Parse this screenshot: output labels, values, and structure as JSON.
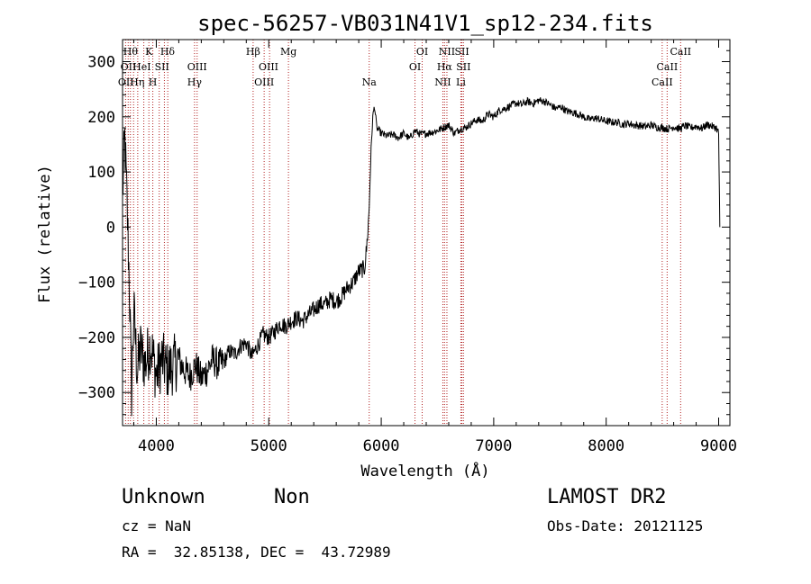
{
  "chart_data": {
    "type": "line",
    "title": "spec-56257-VB031N41V1_sp12-234.fits",
    "xlabel": "Wavelength (Å)",
    "ylabel": "Flux (relative)",
    "xlim": [
      3700,
      9100
    ],
    "ylim": [
      -360,
      340
    ],
    "xticks": [
      4000,
      5000,
      6000,
      7000,
      8000,
      9000
    ],
    "yticks": [
      -300,
      -200,
      -100,
      0,
      100,
      200,
      300
    ],
    "tick_labels": {
      "x": [
        "4000",
        "5000",
        "6000",
        "7000",
        "8000",
        "9000"
      ],
      "y": [
        "−300",
        "−200",
        "−100",
        "0",
        "100",
        "200",
        "300"
      ]
    },
    "grid": false,
    "series": [
      {
        "x": [
          3700,
          3720,
          3740,
          3760,
          3780,
          3800,
          3830,
          3860,
          3900,
          3950,
          4000,
          4050,
          4100,
          4150,
          4200,
          4250,
          4300,
          4350,
          4400,
          4450,
          4500,
          4550,
          4600,
          4650,
          4700,
          4750,
          4800,
          4850,
          4900,
          4950,
          5000,
          5050,
          5100,
          5150,
          5200,
          5250,
          5300,
          5350,
          5400,
          5450,
          5500,
          5550,
          5600,
          5650,
          5700,
          5750,
          5800,
          5850,
          5870,
          5890,
          5900,
          5910,
          5925,
          5940,
          5960,
          6000,
          6050,
          6100,
          6150,
          6200,
          6250,
          6300,
          6350,
          6400,
          6450,
          6500,
          6550,
          6600,
          6650,
          6700,
          6750,
          6800,
          6850,
          6900,
          6950,
          7000,
          7050,
          7100,
          7150,
          7200,
          7250,
          7300,
          7350,
          7400,
          7450,
          7500,
          7550,
          7600,
          7650,
          7700,
          7750,
          7800,
          7850,
          7900,
          7950,
          8000,
          8050,
          8100,
          8150,
          8200,
          8250,
          8300,
          8350,
          8400,
          8450,
          8500,
          8550,
          8600,
          8650,
          8700,
          8750,
          8800,
          8850,
          8900,
          8950,
          8980,
          9000,
          9010
        ],
        "values": [
          60,
          160,
          40,
          -100,
          -300,
          -150,
          -260,
          -220,
          -250,
          -210,
          -270,
          -240,
          -260,
          -250,
          -240,
          -260,
          -270,
          -250,
          -275,
          -260,
          -240,
          -250,
          -245,
          -225,
          -230,
          -215,
          -210,
          -235,
          -215,
          -195,
          -200,
          -190,
          -175,
          -180,
          -170,
          -165,
          -170,
          -160,
          -150,
          -140,
          -140,
          -130,
          -135,
          -125,
          -110,
          -100,
          -80,
          -75,
          -40,
          20,
          80,
          140,
          200,
          220,
          180,
          170,
          165,
          168,
          162,
          170,
          160,
          175,
          168,
          170,
          172,
          175,
          180,
          185,
          170,
          178,
          180,
          188,
          195,
          192,
          205,
          200,
          212,
          215,
          220,
          225,
          222,
          228,
          224,
          230,
          228,
          222,
          215,
          218,
          210,
          208,
          205,
          200,
          195,
          198,
          195,
          192,
          190,
          190,
          186,
          188,
          185,
          184,
          182,
          185,
          181,
          180,
          178,
          182,
          178,
          184,
          180,
          183,
          179,
          186,
          182,
          180,
          170,
          0
        ]
      }
    ],
    "annotations": {
      "line_color": "#b22222",
      "lines": [
        3727,
        3750,
        3770,
        3798,
        3835,
        3889,
        3934,
        3969,
        4026,
        4072,
        4102,
        4340,
        4363,
        4861,
        4959,
        5007,
        5175,
        5893,
        6300,
        6364,
        6548,
        6563,
        6584,
        6708,
        6717,
        6731,
        8498,
        8542,
        8662
      ],
      "labels": [
        {
          "text": "Hθ",
          "x": 3771,
          "row": 1
        },
        {
          "text": "OII",
          "x": 3752,
          "row": 2
        },
        {
          "text": "OII",
          "x": 3730,
          "row": 3
        },
        {
          "text": "Hη",
          "x": 3830,
          "row": 3
        },
        {
          "text": "K",
          "x": 3934,
          "row": 1
        },
        {
          "text": "HeI",
          "x": 3871,
          "row": 2
        },
        {
          "text": "H",
          "x": 3969,
          "row": 3
        },
        {
          "text": "Hδ",
          "x": 4100,
          "row": 1
        },
        {
          "text": "SII",
          "x": 4050,
          "row": 2
        },
        {
          "text": "OIII",
          "x": 4363,
          "row": 2
        },
        {
          "text": "Hγ",
          "x": 4340,
          "row": 3
        },
        {
          "text": "Hβ",
          "x": 4861,
          "row": 1
        },
        {
          "text": "OIII",
          "x": 4998,
          "row": 2
        },
        {
          "text": "OIII",
          "x": 4959,
          "row": 3
        },
        {
          "text": "Mg",
          "x": 5175,
          "row": 1
        },
        {
          "text": "Na",
          "x": 5893,
          "row": 3
        },
        {
          "text": "OI",
          "x": 6364,
          "row": 1
        },
        {
          "text": "OI",
          "x": 6300,
          "row": 2
        },
        {
          "text": "NII",
          "x": 6584,
          "row": 1
        },
        {
          "text": "SII",
          "x": 6717,
          "row": 1
        },
        {
          "text": "Hα",
          "x": 6563,
          "row": 2
        },
        {
          "text": "SII",
          "x": 6731,
          "row": 2
        },
        {
          "text": "NII",
          "x": 6548,
          "row": 3
        },
        {
          "text": "Li",
          "x": 6708,
          "row": 3
        },
        {
          "text": "CaII",
          "x": 8662,
          "row": 1
        },
        {
          "text": "CaII",
          "x": 8542,
          "row": 2
        },
        {
          "text": "CaII",
          "x": 8498,
          "row": 3
        }
      ]
    }
  },
  "info": {
    "object_class": "Unknown",
    "subclass": "Non",
    "survey": "LAMOST DR2",
    "redshift": "cz = NaN",
    "obs_date": "Obs-Date: 20121125",
    "coords": "RA =  32.85138, DEC =  43.72989"
  }
}
